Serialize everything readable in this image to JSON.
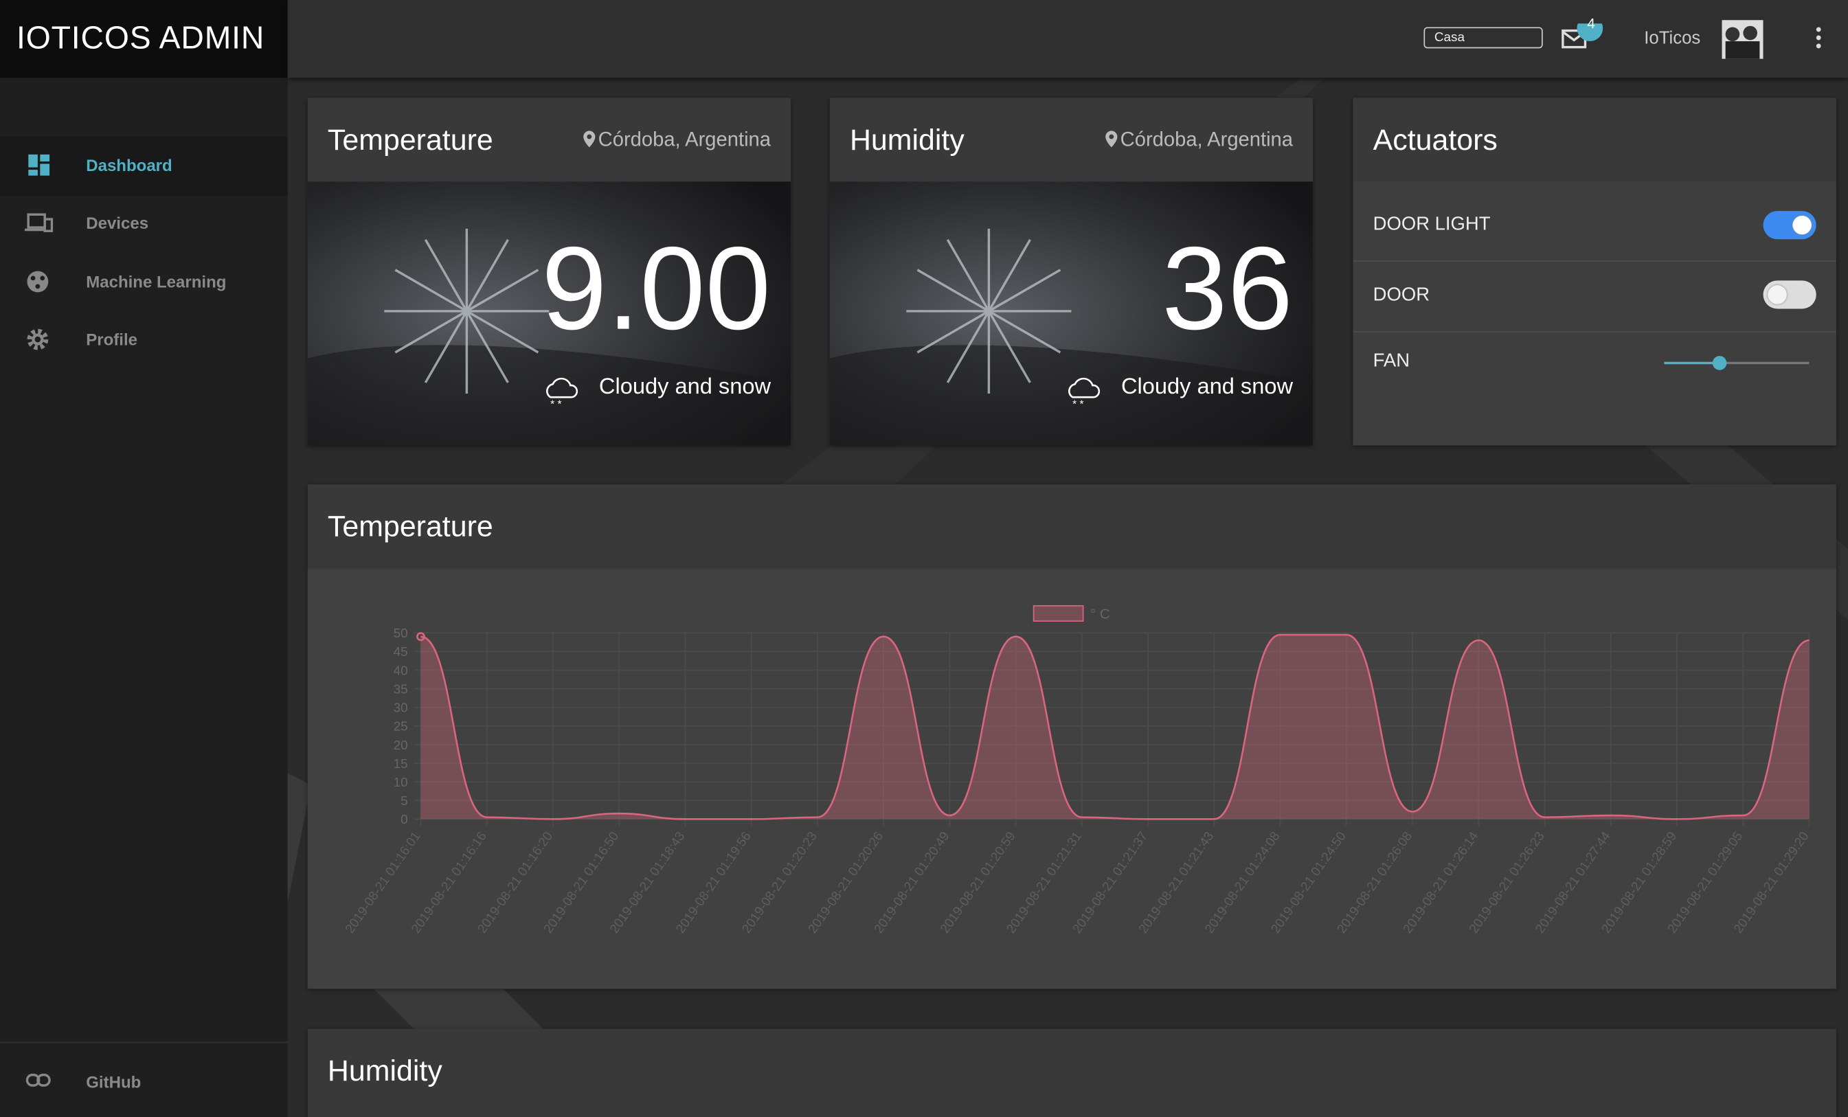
{
  "brand": "IOTICOS ADMIN",
  "nav": [
    "Dashboard",
    "Devices",
    "Machine Learning",
    "Profile"
  ],
  "footer_nav": "GitHub",
  "topbar": {
    "select": "Casa",
    "badge": "4",
    "user": "IoTicos"
  },
  "cards": [
    {
      "title": "Temperature",
      "location": "Córdoba, Argentina",
      "value": "9.00",
      "weather": "Cloudy and snow"
    },
    {
      "title": "Humidity",
      "location": "Córdoba, Argentina",
      "value": "36",
      "weather": "Cloudy and snow"
    }
  ],
  "actuators": {
    "title": "Actuators",
    "items": [
      {
        "label": "DOOR LIGHT",
        "on": true
      },
      {
        "label": "DOOR",
        "on": false
      },
      {
        "label": "FAN"
      }
    ]
  },
  "chart_data": {
    "type": "line",
    "title": "Temperature",
    "categories": [
      "2019-08-21 01:16:01",
      "2019-08-21 01:16:16",
      "2019-08-21 01:16:20",
      "2019-08-21 01:16:50",
      "2019-08-21 01:18:43",
      "2019-08-21 01:19:56",
      "2019-08-21 01:20:23",
      "2019-08-21 01:20:26",
      "2019-08-21 01:20:49",
      "2019-08-21 01:20:59",
      "2019-08-21 01:21:31",
      "2019-08-21 01:21:37",
      "2019-08-21 01:21:43",
      "2019-08-21 01:24:08",
      "2019-08-21 01:24:50",
      "2019-08-21 01:26:08",
      "2019-08-21 01:26:14",
      "2019-08-21 01:26:23",
      "2019-08-21 01:27:44",
      "2019-08-21 01:28:59",
      "2019-08-21 01:29:05",
      "2019-08-21 01:29:20"
    ],
    "series": [
      {
        "name": "° C",
        "color": "#d9667e",
        "values": [
          49,
          0.5,
          0,
          1.5,
          0,
          0,
          0.5,
          49,
          1,
          49,
          0.5,
          0,
          0,
          49.5,
          49.5,
          2,
          48,
          0.5,
          1,
          0,
          1,
          48
        ]
      }
    ],
    "ylim": [
      0,
      50
    ],
    "yticks": [
      0,
      5,
      10,
      15,
      20,
      25,
      30,
      35,
      40,
      45,
      50
    ],
    "grid": true
  },
  "humidity_panel": {
    "title": "Humidity"
  }
}
